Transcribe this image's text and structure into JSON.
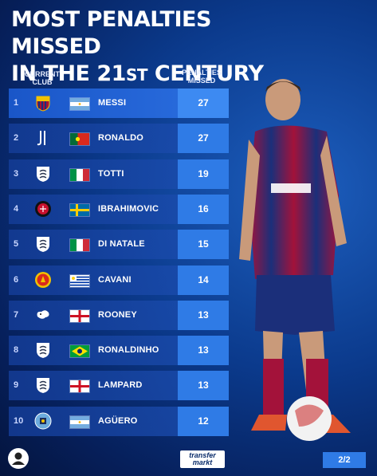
{
  "title": {
    "line1": "MOST PENALTIES MISSED",
    "line2_pre": "IN THE 21",
    "line2_sup": "ST",
    "line2_post": " CENTURY"
  },
  "headers": {
    "club": "CURRENT CLUB",
    "penalties": "PENALTIES MISSED"
  },
  "rows": [
    {
      "rank": "1",
      "club_icon": "fc-barcelona-crest",
      "flag": "argentina-flag",
      "name": "MESSI",
      "missed": "27"
    },
    {
      "rank": "2",
      "club_icon": "juventus-crest",
      "flag": "portugal-flag",
      "name": "RONALDO",
      "missed": "27"
    },
    {
      "rank": "3",
      "club_icon": "generic-club-crest",
      "flag": "italy-flag",
      "name": "TOTTI",
      "missed": "19"
    },
    {
      "rank": "4",
      "club_icon": "ac-milan-crest",
      "flag": "sweden-flag",
      "name": "IBRAHIMOVIC",
      "missed": "16"
    },
    {
      "rank": "5",
      "club_icon": "generic-club-crest",
      "flag": "italy-flag",
      "name": "DI NATALE",
      "missed": "15"
    },
    {
      "rank": "6",
      "club_icon": "man-united-crest",
      "flag": "uruguay-flag",
      "name": "CAVANI",
      "missed": "14"
    },
    {
      "rank": "7",
      "club_icon": "derby-county-crest",
      "flag": "england-flag",
      "name": "ROONEY",
      "missed": "13"
    },
    {
      "rank": "8",
      "club_icon": "generic-club-crest",
      "flag": "brazil-flag",
      "name": "RONALDINHO",
      "missed": "13"
    },
    {
      "rank": "9",
      "club_icon": "generic-club-crest",
      "flag": "england-flag",
      "name": "LAMPARD",
      "missed": "13"
    },
    {
      "rank": "10",
      "club_icon": "man-city-crest",
      "flag": "argentina-flag",
      "name": "AGÜERO",
      "missed": "12"
    }
  ],
  "footer": {
    "logo_line1": "transfer",
    "logo_line2": "markt",
    "page": "2/2"
  },
  "colors": {
    "accent": "#2f7be6",
    "background": "#0b3a8c"
  }
}
